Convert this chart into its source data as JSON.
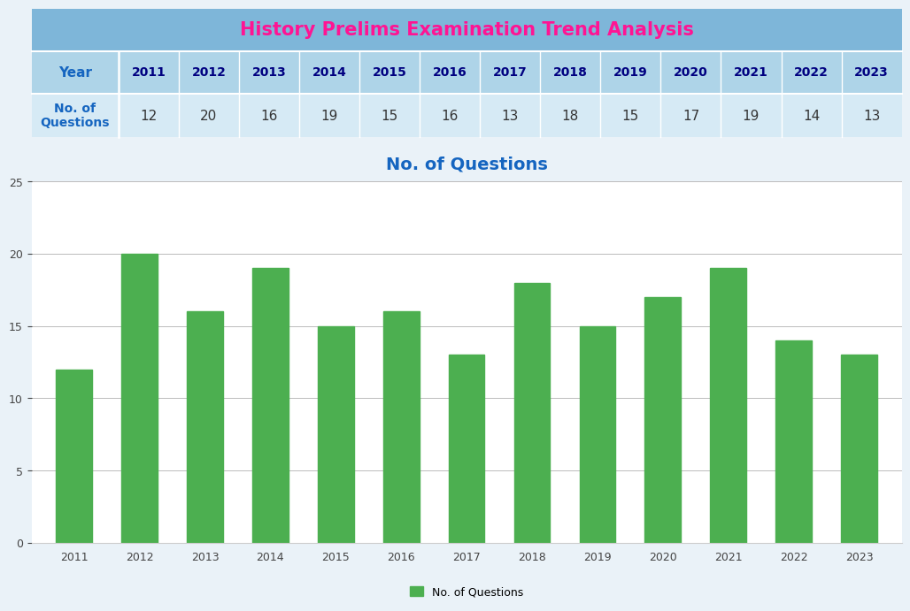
{
  "title": "History Prelims Examination Trend Analysis",
  "title_color": "#FF1493",
  "header_bg": "#7EB6D9",
  "table_row1_bg": "#AED4E8",
  "table_row2_bg": "#D6EAF5",
  "years": [
    2011,
    2012,
    2013,
    2014,
    2015,
    2016,
    2017,
    2018,
    2019,
    2020,
    2021,
    2022,
    2023
  ],
  "values": [
    12,
    20,
    16,
    19,
    15,
    16,
    13,
    18,
    15,
    17,
    19,
    14,
    13
  ],
  "bar_color": "#4CAF50",
  "chart_title": "No. of Questions",
  "chart_title_color": "#1565C0",
  "legend_label": "No. of Questions",
  "ylim": [
    0,
    25
  ],
  "yticks": [
    0,
    5,
    10,
    15,
    20,
    25
  ],
  "row_label1": "Year",
  "row_label2": "No. of\nQuestions",
  "row_label_color": "#1565C0",
  "table_text_color_year": "#000080",
  "table_text_color_val": "#333333",
  "chart_bg": "#FFFFFF",
  "outer_bg": "#EAF2F8"
}
